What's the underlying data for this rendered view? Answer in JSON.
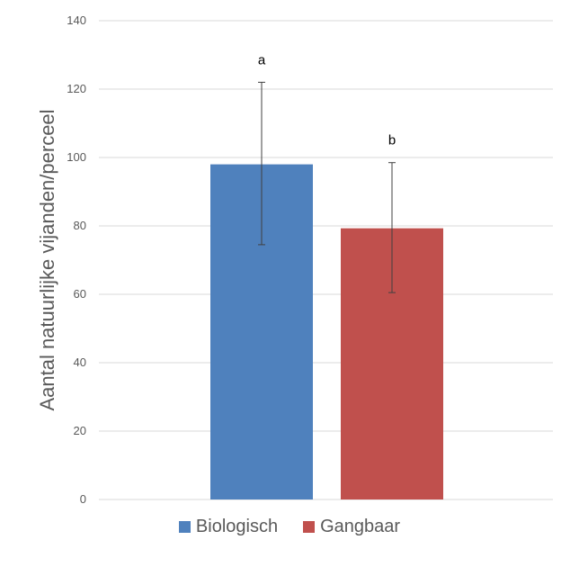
{
  "chart_data": {
    "type": "bar",
    "title": "",
    "xlabel": "",
    "ylabel": "Aantal natuurlijke vijanden/perceel",
    "ylim": [
      0,
      140
    ],
    "yticks": [
      0,
      20,
      40,
      60,
      80,
      100,
      120,
      140
    ],
    "grid": true,
    "legend_position": "bottom",
    "series": [
      {
        "name": "Biologisch",
        "value": 98,
        "error_low": 74.5,
        "error_high": 122,
        "significance": "a",
        "color": "#4F81BD"
      },
      {
        "name": "Gangbaar",
        "value": 79.3,
        "error_low": 60.5,
        "error_high": 98.5,
        "significance": "b",
        "color": "#C0504D"
      }
    ]
  }
}
